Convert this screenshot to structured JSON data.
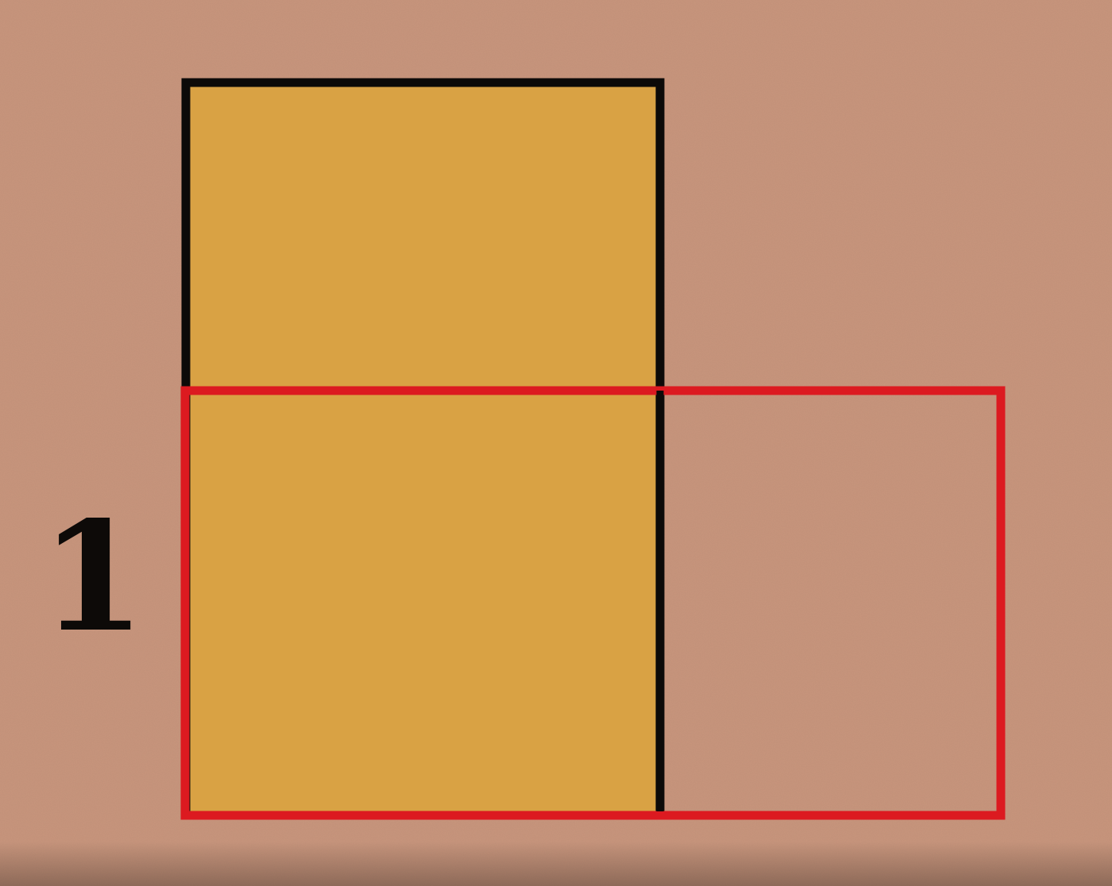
{
  "diagram": {
    "side_label": "1",
    "colors": {
      "background": "#c9957c",
      "filled_rectangle": "#d9a244",
      "outline_black": "#0c0a08",
      "outline_red": "#dc1a20"
    }
  }
}
